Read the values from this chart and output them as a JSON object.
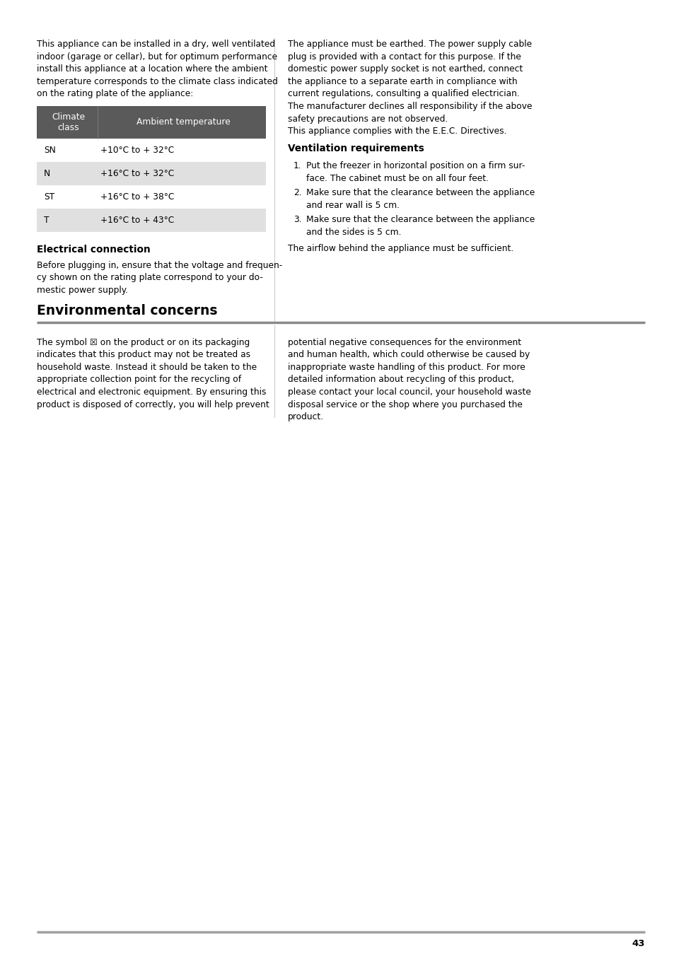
{
  "bg_color": "#ffffff",
  "text_color": "#000000",
  "page_number": "43",
  "divider_color": "#aaaaaa",
  "top_left_para": "This appliance can be installed in a dry, well ventilated\nindoor (garage or cellar), but for optimum performance\ninstall this appliance at a location where the ambient\ntemperature corresponds to the climate class indicated\non the rating plate of the appliance:",
  "table_header_bg": "#5a5a5a",
  "table_header_color": "#ffffff",
  "table_col1_header": "Climate\nclass",
  "table_col2_header": "Ambient temperature",
  "table_rows": [
    [
      "SN",
      "+10°C to + 32°C"
    ],
    [
      "N",
      "+16°C to + 32°C"
    ],
    [
      "ST",
      "+16°C to + 38°C"
    ],
    [
      "T",
      "+16°C to + 43°C"
    ]
  ],
  "table_row_bg_even": "#e0e0e0",
  "table_row_bg_odd": "#ffffff",
  "elec_heading": "Electrical connection",
  "elec_para": "Before plugging in, ensure that the voltage and frequen-\ncy shown on the rating plate correspond to your do-\nmestic power supply.",
  "env_heading": "Environmental concerns",
  "env_left_para": "The symbol ☒ on the product or on its packaging\nindicates that this product may not be treated as\nhousehold waste. Instead it should be taken to the\nappropriate collection point for the recycling of\nelectrical and electronic equipment. By ensuring this\nproduct is disposed of correctly, you will help prevent",
  "top_right_para": "The appliance must be earthed. The power supply cable\nplug is provided with a contact for this purpose. If the\ndomestic power supply socket is not earthed, connect\nthe appliance to a separate earth in compliance with\ncurrent regulations, consulting a qualified electrician.\nThe manufacturer declines all responsibility if the above\nsafety precautions are not observed.\nThis appliance complies with the E.E.C. Directives.",
  "vent_heading": "Ventilation requirements",
  "vent_items": [
    "Put the freezer in horizontal position on a firm sur-\nface. The cabinet must be on all four feet.",
    "Make sure that the clearance between the appliance\nand rear wall is 5 cm.",
    "Make sure that the clearance between the appliance\nand the sides is 5 cm."
  ],
  "vent_footer": "The airflow behind the appliance must be sufficient.",
  "env_right_para": "potential negative consequences for the environment\nand human health, which could otherwise be caused by\ninappropriate waste handling of this product. For more\ndetailed information about recycling of this product,\nplease contact your local council, your household waste\ndisposal service or the shop where you purchased the\nproduct."
}
